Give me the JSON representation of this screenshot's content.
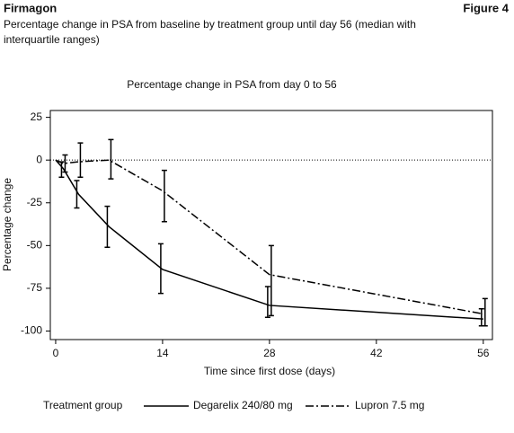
{
  "header": {
    "title": "Firmagon",
    "figure": "Figure 4",
    "subtitle_lines": [
      "Percentage change in PSA from baseline by treatment group until day 56 (median with",
      "interquartile ranges)"
    ]
  },
  "chart_data": {
    "type": "line",
    "title": "Percentage change in PSA from day 0 to 56",
    "x_label": "Time since first dose (days)",
    "y_label": "Percentage change",
    "x": [
      0,
      1,
      3,
      7,
      14,
      28,
      56
    ],
    "xlim": [
      -0.7,
      57.2
    ],
    "xticks": [
      0,
      14,
      28,
      42,
      56
    ],
    "ylim": [
      -105,
      29
    ],
    "yticks": [
      25,
      0,
      -25,
      -50,
      -75,
      -100
    ],
    "hline": 0,
    "legend_title": "Treatment group",
    "series": [
      {
        "name": "Degarelix 240/80 mg",
        "color": "#000000",
        "linestyle": "solid",
        "values": [
          0,
          -5,
          -20,
          -39,
          -64,
          -85,
          -93
        ],
        "low": [
          0,
          -10,
          -28,
          -51,
          -78,
          -92,
          -97
        ],
        "high": [
          0,
          -1,
          -12,
          -27,
          -49,
          -74,
          -87
        ]
      },
      {
        "name": "Lupron 7.5 mg",
        "color": "#000000",
        "linestyle": "dashdot",
        "values": [
          0,
          -2,
          -1,
          0,
          -18,
          -67,
          -90
        ],
        "low": [
          0,
          -7,
          -10,
          -11,
          -36,
          -91,
          -97
        ],
        "high": [
          0,
          3,
          10,
          12,
          -6,
          -50,
          -81
        ]
      }
    ]
  }
}
